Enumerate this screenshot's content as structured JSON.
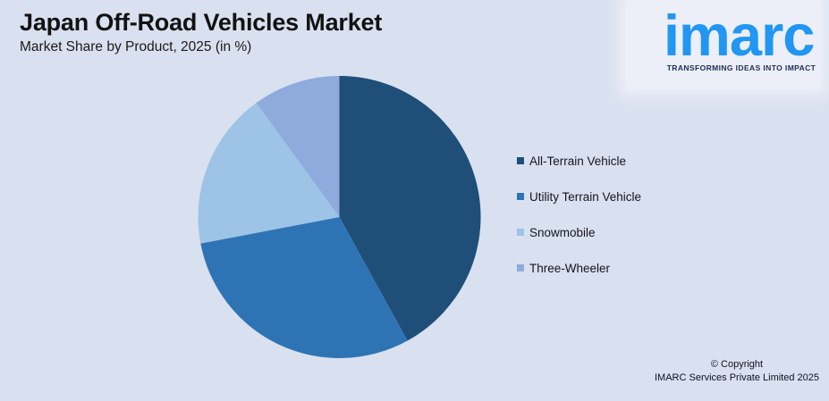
{
  "page": {
    "background": "#D9E0EF"
  },
  "header": {
    "title": "Japan Off-Road Vehicles Market",
    "subtitle": "Market Share by Product, 2025 (in %)",
    "text_color": "#121212"
  },
  "chart_data": {
    "type": "pie",
    "title": "Japan Off-Road Vehicles Market",
    "subtitle": "Market Share by Product, 2025 (in %)",
    "unit": "%",
    "categories": [
      "All-Terrain Vehicle",
      "Utility Terrain Vehicle",
      "Snowmobile",
      "Three-Wheeler"
    ],
    "values": [
      42,
      30,
      18,
      10
    ],
    "colors": [
      "#1F4E79",
      "#2E74B5",
      "#9DC3E6",
      "#8FAADC"
    ],
    "start_angle_deg": 0,
    "direction": "clockwise",
    "legend_position": "right",
    "data_labels": false
  },
  "legend": {
    "text_color": "#15151f"
  },
  "logo": {
    "brand": "imarc",
    "tagline": "TRANSFORMING IDEAS INTO IMPACT",
    "brand_color": "#2196F3",
    "tagline_color": "#1E2D58",
    "panel_color": "#ECEFF7"
  },
  "footer": {
    "line1": "© Copyright",
    "line2": "IMARC Services Private Limited 2025",
    "text_color": "#101020"
  }
}
